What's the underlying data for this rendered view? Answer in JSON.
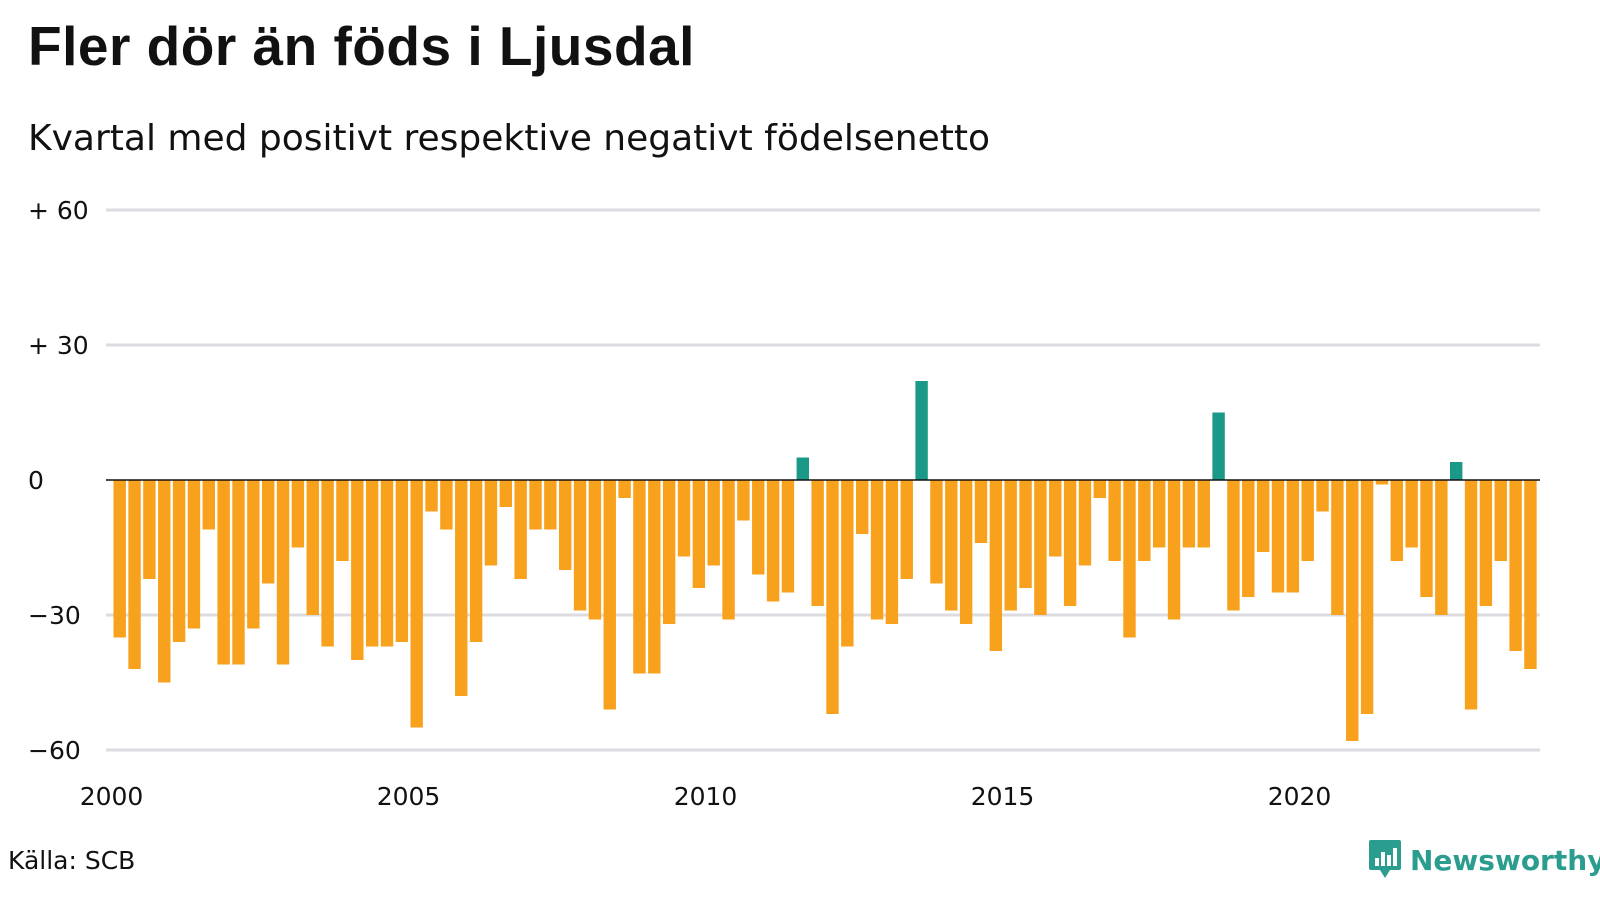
{
  "title": "Fler dör än föds i Ljusdal",
  "subtitle": "Kvartal med positivt respektive negativt födelsenetto",
  "source": "Källa: SCB",
  "logo_text": "Newsworthy",
  "colors": {
    "negative": "#f7a11d",
    "positive": "#1a9988",
    "grid": "#dcdce0",
    "zero": "#111111",
    "brand": "#2a9d8f"
  },
  "chart_data": {
    "type": "bar",
    "ylim": [
      -60,
      60
    ],
    "yticks": [
      {
        "value": 60,
        "label": "+ 60"
      },
      {
        "value": 30,
        "label": "+ 30"
      },
      {
        "value": 0,
        "label": "0"
      },
      {
        "value": -30,
        "label": "−30"
      },
      {
        "value": -60,
        "label": "−60"
      }
    ],
    "x_start": 2000,
    "periods_per_year": 4,
    "xticks": [
      "2000",
      "2005",
      "2010",
      "2015",
      "2020"
    ],
    "grid": true,
    "values": [
      -35,
      -42,
      -22,
      -45,
      -36,
      -33,
      -11,
      -41,
      -41,
      -33,
      -23,
      -41,
      -15,
      -30,
      -37,
      -18,
      -40,
      -37,
      -37,
      -36,
      -55,
      -7,
      -11,
      -48,
      -36,
      -19,
      -6,
      -22,
      -11,
      -11,
      -20,
      -29,
      -31,
      -51,
      -4,
      -43,
      -43,
      -32,
      -17,
      -24,
      -19,
      -31,
      -9,
      -21,
      -27,
      -25,
      5,
      -28,
      -52,
      -37,
      -12,
      -31,
      -32,
      -22,
      22,
      -23,
      -29,
      -32,
      -14,
      -38,
      -29,
      -24,
      -30,
      -17,
      -28,
      -19,
      -4,
      -18,
      -35,
      -18,
      -15,
      -31,
      -15,
      -15,
      15,
      -29,
      -26,
      -16,
      -25,
      -25,
      -18,
      -7,
      -30,
      -58,
      -52,
      -1,
      -18,
      -15,
      -26,
      -30,
      4,
      -51,
      -28,
      -18,
      -38,
      -42
    ]
  }
}
